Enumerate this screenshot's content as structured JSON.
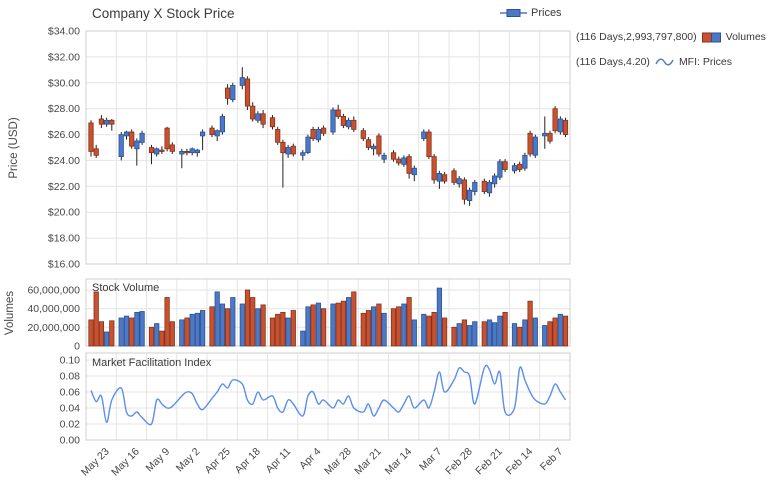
{
  "title": "Company X Stock Price",
  "legend": {
    "prices_label": "Prices",
    "volumes_prefix": "(116 Days,2,993,797,800)",
    "volumes_label": "Volumes",
    "mfi_prefix": "(116 Days,4.20)",
    "mfi_label": "MFI: Prices"
  },
  "panels": {
    "price": {
      "axis_title": "Price (USD)",
      "ticks": [
        "$34.00",
        "$32.00",
        "$30.00",
        "$28.00",
        "$26.00",
        "$24.00",
        "$22.00",
        "$20.00",
        "$18.00",
        "$16.00"
      ],
      "tick_values": [
        34,
        32,
        30,
        28,
        26,
        24,
        22,
        20,
        18,
        16
      ]
    },
    "volume": {
      "axis_title": "Volumes",
      "inner_title": "Stock Volume",
      "ticks": [
        "60,000,000",
        "40,000,000",
        "20,000,000",
        "0"
      ],
      "tick_values": [
        60000000,
        40000000,
        20000000,
        0
      ]
    },
    "mfi": {
      "inner_title": "Market Facilitation Index",
      "ticks": [
        "0.10",
        "0.08",
        "0.06",
        "0.04",
        "0.02",
        "0.00"
      ],
      "tick_values": [
        0.1,
        0.08,
        0.06,
        0.04,
        0.02,
        0.0
      ]
    }
  },
  "x_axis": {
    "labels": [
      "May 23",
      "May 16",
      "May 9",
      "May 2",
      "Apr 25",
      "Apr 18",
      "Apr 11",
      "Apr 4",
      "Mar 28",
      "Mar 21",
      "Mar 14",
      "Mar 7",
      "Feb 28",
      "Feb 21",
      "Feb 14",
      "Feb 7"
    ]
  },
  "colors": {
    "up": "#4b79c8",
    "up_border": "#2c5290",
    "down": "#c9512f",
    "down_border": "#84321b",
    "wick": "#222222",
    "mfi_line": "#5b8dee",
    "grid": "#e4e4e4",
    "border": "#cfcfcf",
    "text": "#474747"
  },
  "chart_data": [
    {
      "type": "candlestick",
      "name": "Prices",
      "title": "Company X Stock Price",
      "ylabel": "Price (USD)",
      "ylim": [
        16,
        34
      ],
      "y_tick_step": 2,
      "days_per_week": 5,
      "week_labels": [
        "May 23",
        "May 16",
        "May 9",
        "May 2",
        "Apr 25",
        "Apr 18",
        "Apr 11",
        "Apr 4",
        "Mar 28",
        "Mar 21",
        "Mar 14",
        "Mar 7",
        "Feb 28",
        "Feb 21",
        "Feb 14",
        "Feb 7"
      ],
      "ohlc": [
        [
          26.9,
          27.1,
          24.3,
          24.7
        ],
        [
          24.9,
          25.2,
          24.2,
          24.4
        ],
        [
          27.2,
          27.5,
          26.5,
          26.8
        ],
        [
          26.8,
          27.3,
          26.6,
          27.1
        ],
        [
          27.1,
          27.2,
          26.3,
          26.8
        ],
        [
          24.3,
          26.2,
          24.0,
          26.0
        ],
        [
          25.9,
          26.3,
          25.6,
          26.2
        ],
        [
          26.2,
          26.4,
          24.9,
          25.1
        ],
        [
          24.9,
          25.7,
          23.6,
          25.5
        ],
        [
          25.4,
          26.3,
          25.2,
          26.1
        ],
        [
          25.0,
          25.2,
          23.7,
          24.6
        ],
        [
          24.5,
          25.0,
          24.3,
          24.9
        ],
        [
          24.8,
          25.1,
          24.5,
          24.7
        ],
        [
          26.5,
          26.6,
          24.7,
          24.9
        ],
        [
          25.2,
          25.4,
          24.5,
          24.7
        ],
        [
          24.5,
          24.9,
          23.4,
          24.7
        ],
        [
          24.7,
          24.9,
          24.4,
          24.6
        ],
        [
          24.6,
          25.0,
          24.4,
          24.9
        ],
        [
          24.6,
          24.9,
          24.3,
          24.8
        ],
        [
          25.9,
          26.4,
          24.8,
          26.2
        ],
        [
          26.5,
          26.7,
          25.8,
          26.0
        ],
        [
          25.9,
          26.4,
          25.5,
          26.3
        ],
        [
          26.2,
          27.6,
          26.0,
          27.4
        ],
        [
          29.6,
          29.9,
          28.3,
          28.8
        ],
        [
          28.7,
          30.0,
          28.5,
          29.8
        ],
        [
          29.8,
          31.2,
          29.5,
          30.4
        ],
        [
          30.3,
          30.5,
          27.9,
          28.2
        ],
        [
          28.2,
          28.5,
          27.0,
          27.2
        ],
        [
          27.1,
          27.8,
          26.9,
          27.6
        ],
        [
          27.6,
          27.9,
          26.5,
          26.8
        ],
        [
          27.3,
          27.5,
          26.4,
          26.6
        ],
        [
          26.4,
          26.6,
          25.2,
          25.4
        ],
        [
          25.4,
          25.6,
          21.9,
          24.6
        ],
        [
          24.5,
          25.2,
          24.2,
          25.0
        ],
        [
          25.1,
          25.3,
          24.3,
          24.5
        ],
        [
          24.4,
          24.8,
          24.0,
          24.6
        ],
        [
          24.6,
          26.0,
          24.5,
          25.8
        ],
        [
          26.4,
          26.6,
          25.5,
          25.7
        ],
        [
          25.6,
          26.6,
          25.4,
          26.4
        ],
        [
          26.5,
          26.7,
          25.9,
          26.1
        ],
        [
          26.2,
          28.1,
          26.0,
          27.9
        ],
        [
          27.9,
          28.3,
          27.2,
          27.4
        ],
        [
          27.4,
          27.6,
          26.5,
          26.7
        ],
        [
          26.6,
          27.3,
          26.4,
          27.1
        ],
        [
          27.1,
          27.4,
          26.2,
          26.4
        ],
        [
          26.3,
          26.5,
          25.5,
          25.7
        ],
        [
          25.6,
          25.8,
          24.8,
          25.0
        ],
        [
          24.9,
          25.3,
          24.4,
          25.1
        ],
        [
          25.9,
          26.1,
          24.3,
          24.5
        ],
        [
          24.1,
          24.6,
          23.8,
          24.4
        ],
        [
          24.6,
          24.8,
          23.9,
          24.1
        ],
        [
          24.1,
          24.3,
          23.6,
          23.8
        ],
        [
          23.7,
          24.4,
          23.5,
          24.2
        ],
        [
          24.3,
          24.5,
          22.6,
          23.0
        ],
        [
          22.9,
          23.6,
          22.4,
          23.4
        ],
        [
          25.7,
          26.4,
          25.5,
          26.2
        ],
        [
          26.2,
          26.4,
          24.1,
          24.3
        ],
        [
          24.3,
          24.5,
          22.2,
          22.5
        ],
        [
          22.4,
          23.2,
          21.8,
          23.0
        ],
        [
          22.9,
          23.1,
          22.2,
          22.4
        ],
        [
          23.2,
          23.4,
          22.1,
          22.3
        ],
        [
          22.2,
          22.8,
          21.9,
          22.6
        ],
        [
          22.5,
          22.7,
          20.6,
          21.0
        ],
        [
          20.9,
          21.9,
          20.5,
          21.7
        ],
        [
          21.6,
          22.5,
          21.3,
          22.3
        ],
        [
          22.4,
          22.6,
          21.4,
          21.6
        ],
        [
          21.5,
          22.5,
          21.2,
          22.3
        ],
        [
          22.2,
          23.0,
          21.9,
          22.8
        ],
        [
          22.7,
          24.1,
          22.5,
          23.9
        ],
        [
          23.9,
          24.1,
          23.1,
          23.3
        ],
        [
          23.2,
          23.8,
          23.0,
          23.6
        ],
        [
          23.7,
          23.9,
          23.1,
          23.3
        ],
        [
          23.4,
          24.6,
          23.2,
          24.4
        ],
        [
          26.1,
          26.3,
          24.3,
          24.5
        ],
        [
          24.4,
          26.0,
          24.2,
          25.8
        ],
        [
          25.9,
          27.4,
          24.9,
          26.1
        ],
        [
          26.1,
          26.3,
          25.3,
          25.5
        ],
        [
          28.0,
          28.2,
          26.1,
          26.3
        ],
        [
          26.2,
          27.4,
          26.0,
          27.2
        ],
        [
          27.1,
          27.3,
          25.8,
          26.0
        ]
      ]
    },
    {
      "type": "bar",
      "name": "Volumes",
      "title": "Stock Volume",
      "ylabel": "Volumes",
      "ylim": [
        0,
        60000000
      ],
      "values": [
        28000000,
        58000000,
        26000000,
        15000000,
        27000000,
        30000000,
        32000000,
        30000000,
        36000000,
        37000000,
        20000000,
        24000000,
        16000000,
        52000000,
        26000000,
        28000000,
        30000000,
        34000000,
        35000000,
        38000000,
        42000000,
        58000000,
        45000000,
        40000000,
        52000000,
        45000000,
        60000000,
        52000000,
        40000000,
        44000000,
        30000000,
        34000000,
        36000000,
        30000000,
        38000000,
        16000000,
        42000000,
        44000000,
        46000000,
        40000000,
        45000000,
        46000000,
        48000000,
        52000000,
        58000000,
        35000000,
        38000000,
        42000000,
        45000000,
        35000000,
        40000000,
        42000000,
        45000000,
        52000000,
        28000000,
        34000000,
        32000000,
        36000000,
        62000000,
        30000000,
        20000000,
        24000000,
        28000000,
        22000000,
        26000000,
        26000000,
        28000000,
        25000000,
        32000000,
        36000000,
        24000000,
        20000000,
        28000000,
        48000000,
        30000000,
        22000000,
        26000000,
        30000000,
        34000000,
        32000000
      ]
    },
    {
      "type": "line",
      "name": "MFI: Prices",
      "title": "Market Facilitation Index",
      "ylim": [
        0,
        0.1
      ],
      "values": [
        0.062,
        0.048,
        0.055,
        0.022,
        0.05,
        0.065,
        0.035,
        0.03,
        0.035,
        0.028,
        0.02,
        0.05,
        0.045,
        0.04,
        0.042,
        0.055,
        0.06,
        0.058,
        0.045,
        0.038,
        0.052,
        0.06,
        0.07,
        0.065,
        0.075,
        0.07,
        0.05,
        0.045,
        0.06,
        0.05,
        0.055,
        0.04,
        0.035,
        0.05,
        0.045,
        0.03,
        0.055,
        0.06,
        0.045,
        0.05,
        0.04,
        0.05,
        0.045,
        0.055,
        0.04,
        0.035,
        0.045,
        0.03,
        0.04,
        0.05,
        0.04,
        0.035,
        0.045,
        0.055,
        0.04,
        0.05,
        0.04,
        0.06,
        0.085,
        0.06,
        0.075,
        0.09,
        0.085,
        0.08,
        0.045,
        0.09,
        0.088,
        0.07,
        0.085,
        0.035,
        0.04,
        0.09,
        0.075,
        0.06,
        0.05,
        0.045,
        0.055,
        0.07,
        0.06,
        0.05
      ]
    }
  ]
}
